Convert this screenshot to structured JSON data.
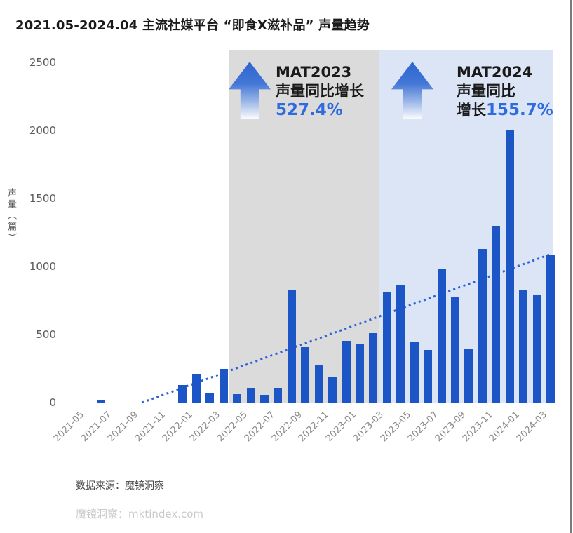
{
  "page": {
    "title": "2021.05-2024.04 主流社媒平台 “即食X滋补品” 声量趋势"
  },
  "chart_data": {
    "type": "bar",
    "title": "2021.05-2024.04 主流社媒平台 “即食X滋补品” 声量趋势",
    "xlabel": "",
    "ylabel": "声量（篇）",
    "ylim": [
      0,
      2500
    ],
    "yticks": [
      0,
      500,
      1000,
      1500,
      2000,
      2500
    ],
    "grid": false,
    "bar_color": "#1c56c6",
    "categories": [
      "2021-05",
      "2021-06",
      "2021-07",
      "2021-08",
      "2021-09",
      "2021-10",
      "2021-11",
      "2021-12",
      "2022-01",
      "2022-02",
      "2022-03",
      "2022-04",
      "2022-05",
      "2022-06",
      "2022-07",
      "2022-08",
      "2022-09",
      "2022-10",
      "2022-11",
      "2022-12",
      "2023-01",
      "2023-02",
      "2023-03",
      "2023-04",
      "2023-05",
      "2023-06",
      "2023-07",
      "2023-08",
      "2023-09",
      "2023-10",
      "2023-11",
      "2023-12",
      "2024-01",
      "2024-02",
      "2024-03",
      "2024-04"
    ],
    "values": [
      0,
      0,
      15,
      0,
      0,
      0,
      0,
      0,
      130,
      210,
      65,
      250,
      60,
      110,
      55,
      110,
      830,
      405,
      275,
      185,
      455,
      435,
      510,
      810,
      865,
      450,
      385,
      980,
      780,
      395,
      1130,
      1300,
      2000,
      830,
      795,
      1085
    ],
    "x_tick_labels": [
      "2021-05",
      "2021-07",
      "2021-09",
      "2021-11",
      "2022-01",
      "2022-03",
      "2022-05",
      "2022-07",
      "2022-09",
      "2022-11",
      "2023-01",
      "2023-03",
      "2023-05",
      "2023-07",
      "2023-09",
      "2023-11",
      "2024-01",
      "2024-03"
    ],
    "x_tick_every": 2,
    "trendline": {
      "style": "dotted",
      "color": "#2b62d9",
      "start": "2021-10",
      "start_value": 0,
      "end": "2024-04",
      "end_value": 1090
    },
    "regions": [
      {
        "name": "MAT2023",
        "start": "2022-05",
        "end": "2023-03",
        "color": "#dbdbdb"
      },
      {
        "name": "MAT2024",
        "start": "2023-04",
        "end": "2024-04",
        "color": "#dce5f6"
      }
    ],
    "annotations": [
      {
        "title": "MAT2023",
        "line2": "声量同比增长",
        "line3_black": "",
        "line3_blue": "527.4%",
        "highlight_color": "#2f6be0"
      },
      {
        "title": "MAT2024",
        "line2": "声量同比",
        "line3_black": "增长",
        "line3_blue": "155.7%",
        "highlight_color": "#2f6be0"
      }
    ]
  },
  "footer": {
    "source": "数据来源：魔镜洞察",
    "watermark_brand": "魔镜洞察：",
    "watermark_site": "mktindex.com"
  }
}
